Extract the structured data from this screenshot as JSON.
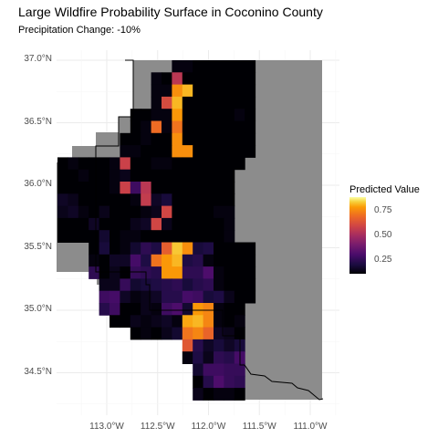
{
  "chart_data": {
    "type": "heatmap",
    "title": "Large Wildfire Probability Surface in Coconino County",
    "subtitle": "Precipitation Change: -10%",
    "xlabel": "",
    "ylabel": "",
    "x_ticks": [
      {
        "value": -113.0,
        "label": "113.0°W"
      },
      {
        "value": -112.5,
        "label": "112.5°W"
      },
      {
        "value": -112.0,
        "label": "112.0°W"
      },
      {
        "value": -111.5,
        "label": "111.5°W"
      },
      {
        "value": -111.0,
        "label": "111.0°W"
      }
    ],
    "y_ticks": [
      {
        "value": 37.0,
        "label": "37.0°N"
      },
      {
        "value": 36.5,
        "label": "36.5°N"
      },
      {
        "value": 36.0,
        "label": "36.0°N"
      },
      {
        "value": 35.5,
        "label": "35.5°N"
      },
      {
        "value": 35.0,
        "label": "35.0°N"
      },
      {
        "value": 34.5,
        "label": "34.5°N"
      }
    ],
    "xlim": [
      -113.41,
      -110.73
    ],
    "ylim": [
      34.2,
      37.1
    ],
    "grid": true,
    "legend": {
      "title": "Predicted Value",
      "position": "right",
      "ticks": [
        {
          "value": 0.75,
          "label": "0.75"
        },
        {
          "value": 0.5,
          "label": "0.50"
        },
        {
          "value": 0.25,
          "label": "0.25"
        }
      ],
      "range": [
        0.12,
        0.9
      ]
    },
    "colormap": [
      "#000004",
      "#1b0c41",
      "#4a0c6b",
      "#781c6d",
      "#a52c60",
      "#cf4446",
      "#ed6925",
      "#fb9b06",
      "#f7d13d",
      "#fcffa4"
    ],
    "grid_cells": {
      "lon0": -113.25,
      "lat0": 37.0,
      "dlon": 0.125,
      "dlat": 0.125,
      "rows": [
        "1:..........IIHHHHHH",
        "1:........IHhHGGHHHH",
        "1:........IIuxHHHHHH",
        "1:........IlxHHHHHHH",
        "1:......HHIIvHHHHHIH",
        "1:......HIqIrHHHHHHH",
        "1:.....HHIHHuHHHHHHH",
        "1:.....IIHHHuuHHHHHH",
        "0:HIHHHIjHHIIHHHHHHH",
        "0:HHIGHIJHHHHHHHHHH.",
        "0:GHHHHIjRhHHHHHHHH.",
        "0:KJGHHHHIiKMHHHHHH.",
        "0:JKIHJHHHIJkHHHHII.",
        "0:HHHKHHHJKkJHHHHHI.",
        "0:HHHGLGIIHHHHHHHHI.",
        "3:HMHILPNoyuMNHHHH",
        "3:IHKKSNrvxNOIGHHH",
        "3:PHJHQPOvvPPTIHHH",
        "4:JJQLMNOPMOPIHHH",
        "4:RSKIJKOOSRMNJHH",
        "4:ORGGJIRTLvtIHH",
        "5:HHJIJKIwxtIHI",
        "5:..HIHJLrtpKJH",
        "5:.......nOKMKM",
        "5:.......INJPOS",
        "6:.......LRRQQ",
        "6:.......HOTQP",
        "6:.......JHIIH"
      ],
      "legend_code": "H=0.12..z=0.90 (A-Z then a-z increasing)"
    }
  }
}
